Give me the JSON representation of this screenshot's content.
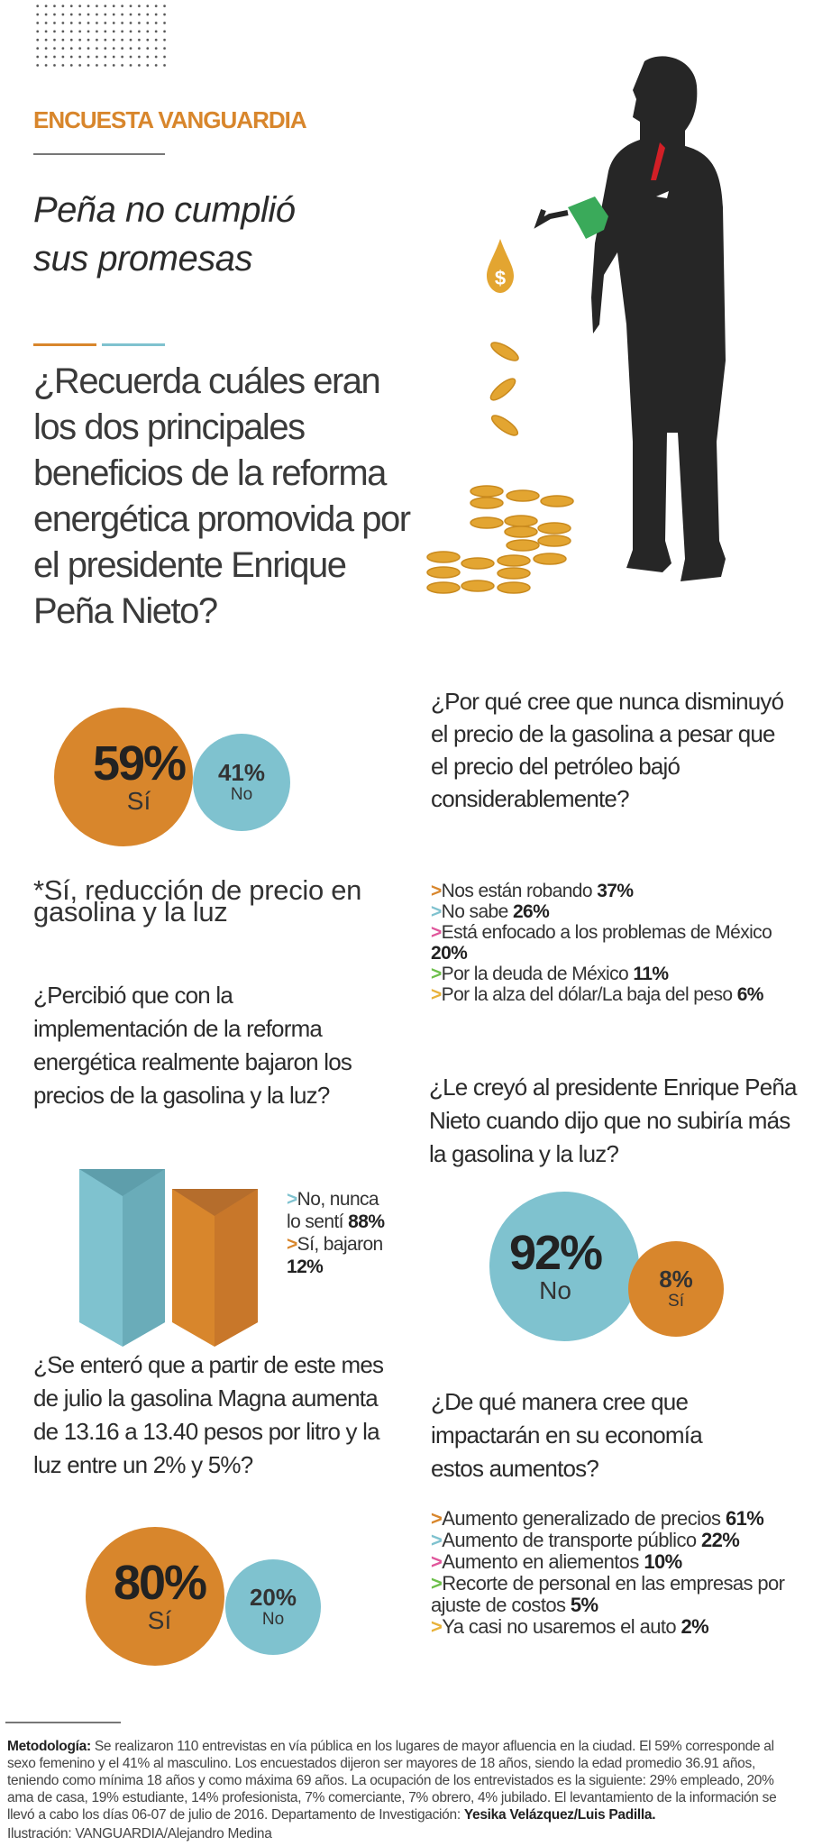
{
  "header": {
    "kicker": "ENCUESTA VANGUARDIA",
    "title_line1": "Peña no cumplió",
    "title_line2": "sus promesas"
  },
  "colors": {
    "orange": "#d8862c",
    "blue": "#7fc2cf",
    "pink": "#e0569b",
    "green": "#6cbf4a",
    "yellow": "#e8b23a"
  },
  "illustration": {
    "icons": [
      "dots-pattern",
      "businessman-silhouette",
      "gas-pump-nozzle-icon",
      "dollar-drop-icon",
      "coins-icon"
    ],
    "drop_symbol": "$"
  },
  "q1": {
    "question": "¿Recuerda cuáles eran los dos principales beneficios de la reforma energética promovida por el presidente Enrique Peña Nieto?",
    "yes_pct": "59%",
    "yes_label": "Sí",
    "no_pct": "41%",
    "no_label": "No",
    "note": "*Sí, reducción de precio en gasolina y la luz"
  },
  "q2": {
    "question": "¿Percibió que con la implementación de la reforma energética realmente bajaron los precios de la gasolina y la luz?",
    "items": [
      {
        "text": "No, nunca lo sentí",
        "value": "88%"
      },
      {
        "text": "Sí, bajaron",
        "value": "12%"
      }
    ],
    "values": [
      88,
      12
    ]
  },
  "q3": {
    "question": "¿Se enteró que a partir de este mes de julio la gasolina Magna aumenta de 13.16 a 13.40 pesos por litro y la luz entre un 2% y 5%?",
    "yes_pct": "80%",
    "yes_label": "Sí",
    "no_pct": "20%",
    "no_label": "No"
  },
  "q4": {
    "question": "¿Por qué cree que nunca disminuyó el precio de la gasolina a pesar que el precio del petróleo bajó considerablemente?",
    "items": [
      {
        "text": "Nos están robando",
        "value": "37%"
      },
      {
        "text": "No sabe",
        "value": "26%"
      },
      {
        "text": "Está enfocado a los problemas de México",
        "value": "20%"
      },
      {
        "text": "Por la deuda de México",
        "value": "11%"
      },
      {
        "text": "Por la alza del dólar/La baja del peso",
        "value": "6%"
      }
    ]
  },
  "q5": {
    "question": "¿Le creyó al presidente Enrique Peña Nieto cuando dijo que no subiría más la gasolina y la luz?",
    "no_pct": "92%",
    "no_label": "No",
    "yes_pct": "8%",
    "yes_label": "Sí"
  },
  "q6": {
    "question": "¿De qué manera cree que impactarán en su economía estos aumentos?",
    "items": [
      {
        "text": "Aumento generalizado de precios",
        "value": "61%"
      },
      {
        "text": "Aumento de transporte público",
        "value": "22%"
      },
      {
        "text": "Aumento en aliementos",
        "value": "10%"
      },
      {
        "text": "Recorte de personal en las empresas por ajuste de costos",
        "value": "5%"
      },
      {
        "text": "Ya casi no usaremos el auto",
        "value": "2%"
      }
    ]
  },
  "arrow": ">",
  "methodology": {
    "label": "Metodología:",
    "text": "Se realizaron 110 entrevistas en vía pública en los lugares de mayor afluencia en la ciudad. El 59% corresponde al sexo femenino y el 41% al masculino. Los encuestados dijeron ser mayores de 18 años, siendo la edad promedio 36.91 años, teniendo como mínima 18 años y como máxima 69 años. La ocupación de los entrevistados es la siguiente: 29% empleado, 20% ama de casa, 19% estudiante, 14% profesionista, 7% comerciante, 7% obrero, 4% jubilado. El levantamiento de la información se llevó a cabo los días 06-07 de julio de 2016. Departamento de Investigación:",
    "authors": "Yesika Velázquez/Luis Padilla.",
    "credit": "Ilustración: VANGUARDIA/Alejandro Medina"
  }
}
